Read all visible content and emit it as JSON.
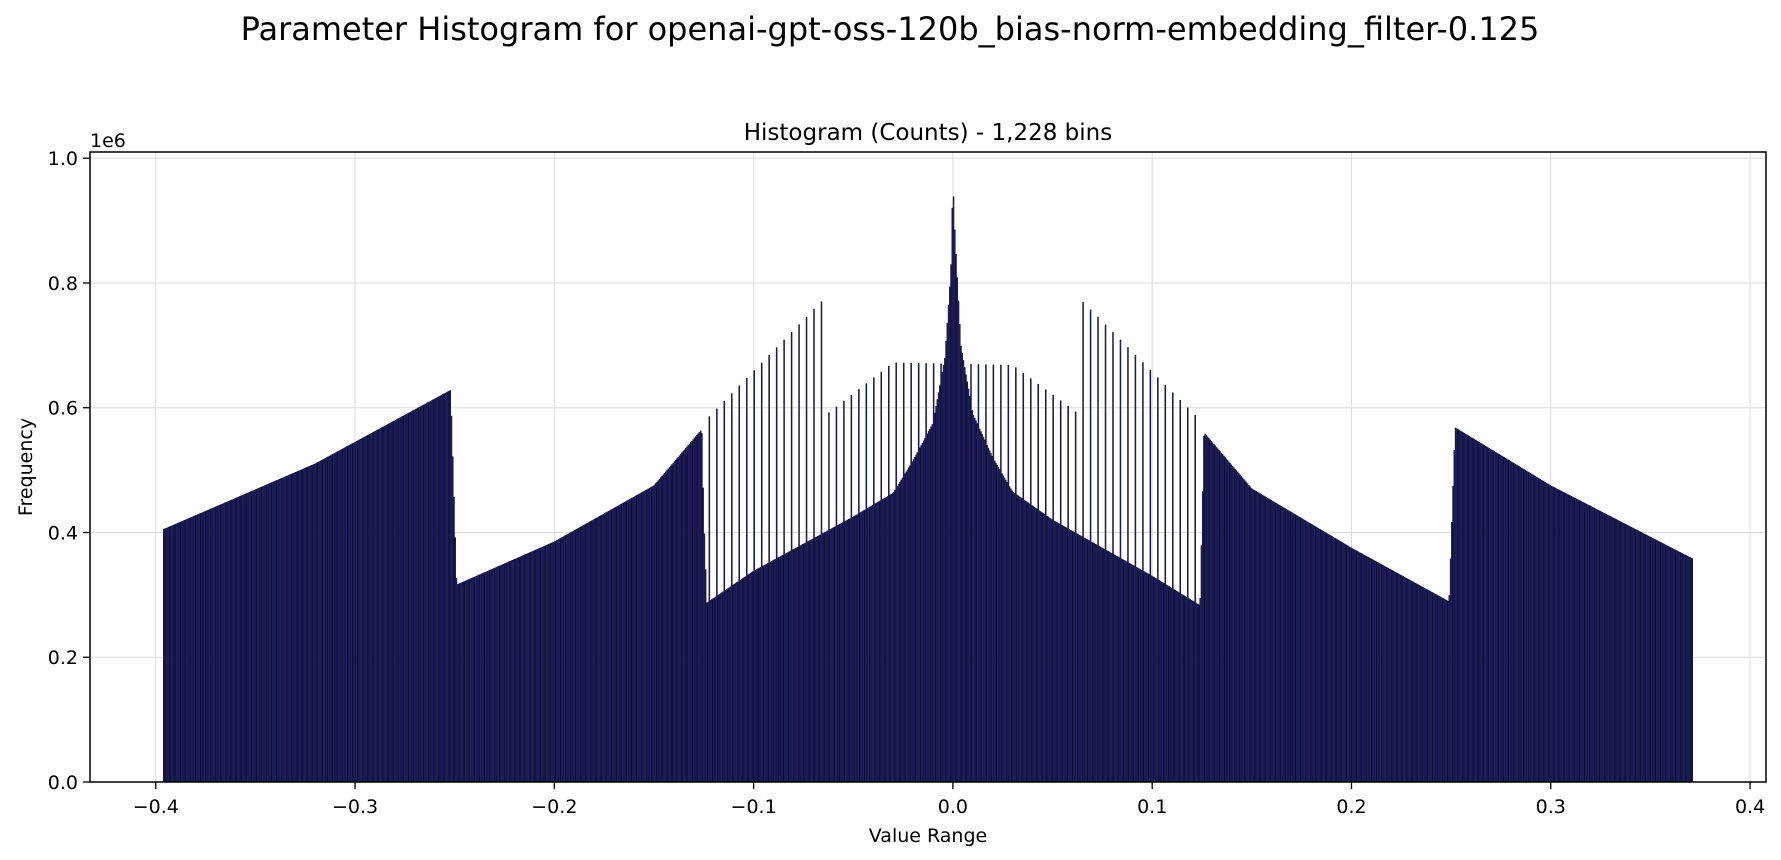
{
  "figure": {
    "suptitle": "Parameter Histogram for openai-gpt-oss-120b_bias-norm-embedding_filter-0.125"
  },
  "chart_data": {
    "type": "bar",
    "title": "Histogram (Counts) - 1,228 bins",
    "xlabel": "Value Range",
    "ylabel": "Frequency",
    "y_offset_text": "1e6",
    "xlim": [
      -0.433,
      0.408
    ],
    "ylim": [
      0,
      1010000
    ],
    "xticks": [
      -0.4,
      -0.3,
      -0.2,
      -0.1,
      0.0,
      0.1,
      0.2,
      0.3,
      0.4
    ],
    "xtick_labels": [
      "−0.4",
      "−0.3",
      "−0.2",
      "−0.1",
      "0.0",
      "0.1",
      "0.2",
      "0.3",
      "0.4"
    ],
    "yticks": [
      0,
      200000,
      400000,
      600000,
      800000,
      1000000
    ],
    "ytick_labels": [
      "0.0",
      "0.2",
      "0.4",
      "0.6",
      "0.8",
      "1.0"
    ],
    "grid": true,
    "bar_fill": "#3a3aa8",
    "bar_edge": "#0b0b2e",
    "bin_count": 1228,
    "bins": {
      "x_start": -0.396,
      "x_end": 0.371,
      "envelope_points": [
        [
          -0.396,
          405000
        ],
        [
          -0.32,
          510000
        ],
        [
          -0.252,
          628000
        ],
        [
          -0.2505,
          472000
        ],
        [
          -0.249,
          316000
        ],
        [
          -0.2,
          385000
        ],
        [
          -0.15,
          475000
        ],
        [
          -0.126,
          565000
        ],
        [
          -0.125,
          425000
        ],
        [
          -0.1235,
          287000
        ],
        [
          -0.1,
          338000
        ],
        [
          -0.05,
          425000
        ],
        [
          -0.03,
          463000
        ],
        [
          -0.02,
          515000
        ],
        [
          -0.01,
          575000
        ],
        [
          -0.004,
          680000
        ],
        [
          -0.001,
          820000
        ],
        [
          0.0,
          965000
        ],
        [
          0.001,
          880000
        ],
        [
          0.004,
          700000
        ],
        [
          0.01,
          590000
        ],
        [
          0.02,
          520000
        ],
        [
          0.03,
          465000
        ],
        [
          0.05,
          420000
        ],
        [
          0.1,
          330000
        ],
        [
          0.124,
          283000
        ],
        [
          0.125,
          418000
        ],
        [
          0.126,
          560000
        ],
        [
          0.15,
          470000
        ],
        [
          0.2,
          375000
        ],
        [
          0.249,
          289000
        ],
        [
          0.2505,
          430000
        ],
        [
          0.252,
          568000
        ],
        [
          0.3,
          475000
        ],
        [
          0.371,
          358000
        ]
      ],
      "outer_envelope_points": [
        [
          -0.124,
          580000
        ],
        [
          -0.065,
          773000
        ],
        [
          -0.063,
          590000
        ],
        [
          -0.03,
          672000
        ],
        [
          0.03,
          668000
        ],
        [
          0.063,
          590000
        ],
        [
          0.065,
          770000
        ],
        [
          0.124,
          580000
        ]
      ]
    }
  }
}
